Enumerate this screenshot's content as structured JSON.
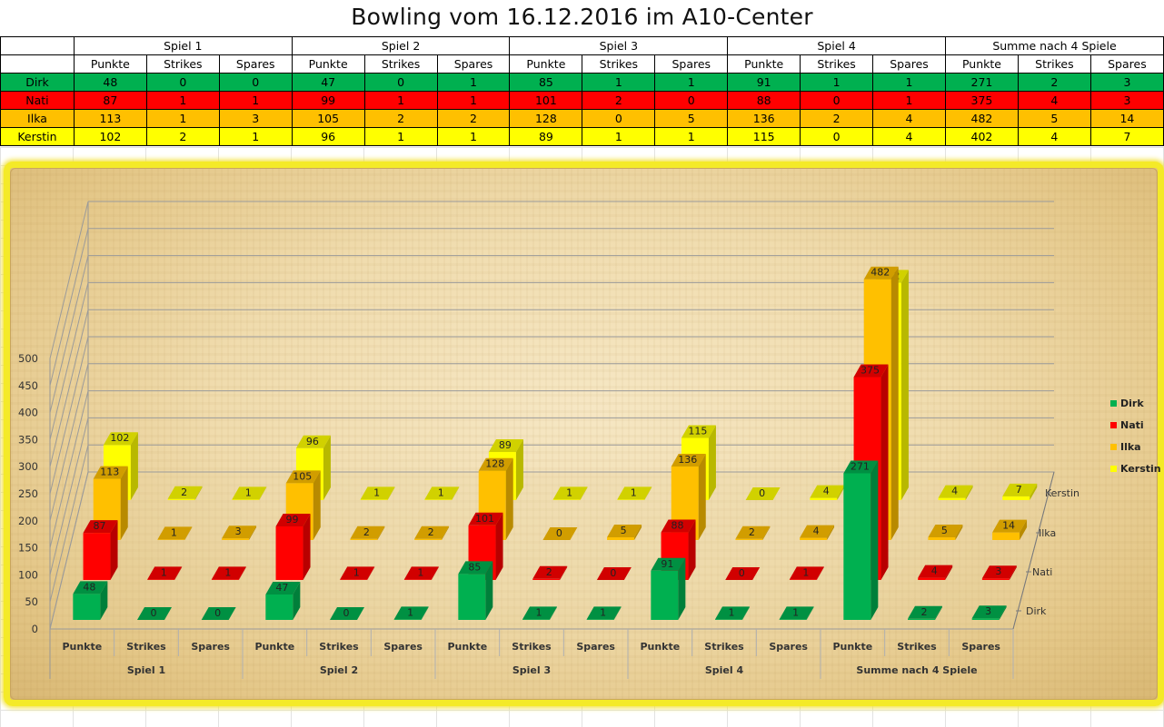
{
  "title": "Bowling vom 16.12.2016 im A10-Center",
  "table": {
    "groups": [
      "Spiel 1",
      "Spiel 2",
      "Spiel 3",
      "Spiel 4",
      "Summe nach 4 Spiele"
    ],
    "metrics": [
      "Punkte",
      "Strikes",
      "Spares"
    ],
    "rows": [
      {
        "name": "Dirk",
        "values": [
          "48",
          "0",
          "0",
          "47",
          "0",
          "1",
          "85",
          "1",
          "1",
          "91",
          "1",
          "1",
          "271",
          "2",
          "3"
        ]
      },
      {
        "name": "Nati",
        "values": [
          "87",
          "1",
          "1",
          "99",
          "1",
          "1",
          "101",
          "2",
          "0",
          "88",
          "0",
          "1",
          "375",
          "4",
          "3"
        ]
      },
      {
        "name": "Ilka",
        "values": [
          "113",
          "1",
          "3",
          "105",
          "2",
          "2",
          "128",
          "0",
          "5",
          "136",
          "2",
          "4",
          "482",
          "5",
          "14"
        ]
      },
      {
        "name": "Kerstin",
        "values": [
          "102",
          "2",
          "1",
          "96",
          "1",
          "1",
          "89",
          "1",
          "1",
          "115",
          "0",
          "4",
          "402",
          "4",
          "7"
        ]
      }
    ]
  },
  "chart_data": {
    "type": "bar",
    "title": "",
    "categories": [
      "Punkte",
      "Strikes",
      "Spares",
      "Punkte",
      "Strikes",
      "Spares",
      "Punkte",
      "Strikes",
      "Spares",
      "Punkte",
      "Strikes",
      "Spares",
      "Punkte",
      "Strikes",
      "Spares"
    ],
    "category_groups": [
      "Spiel 1",
      "Spiel 2",
      "Spiel 3",
      "Spiel 4",
      "Summe nach 4 Spiele"
    ],
    "series": [
      {
        "name": "Dirk",
        "color": "#00b050",
        "values": [
          48,
          0,
          0,
          47,
          0,
          1,
          85,
          1,
          1,
          91,
          1,
          1,
          271,
          2,
          3
        ]
      },
      {
        "name": "Nati",
        "color": "#ff0000",
        "values": [
          87,
          1,
          1,
          99,
          1,
          1,
          101,
          2,
          0,
          88,
          0,
          1,
          375,
          4,
          3
        ]
      },
      {
        "name": "Ilka",
        "color": "#ffc000",
        "values": [
          113,
          1,
          3,
          105,
          2,
          2,
          128,
          0,
          5,
          136,
          2,
          4,
          482,
          5,
          14
        ]
      },
      {
        "name": "Kerstin",
        "color": "#ffff00",
        "values": [
          102,
          2,
          1,
          96,
          1,
          1,
          89,
          1,
          1,
          115,
          0,
          4,
          402,
          4,
          7
        ]
      }
    ],
    "y_ticks": [
      "0",
      "50",
      "100",
      "150",
      "200",
      "250",
      "300",
      "350",
      "400",
      "450",
      "500"
    ],
    "ylim": [
      0,
      500
    ],
    "depth_axis_labels": [
      "Dirk",
      "Nati",
      "Ilka",
      "Kerstin"
    ],
    "legend": [
      "Dirk",
      "Nati",
      "Ilka",
      "Kerstin"
    ],
    "legend_position": "right",
    "chart_style": "3d-bar",
    "data_labels": true,
    "grid": true
  }
}
